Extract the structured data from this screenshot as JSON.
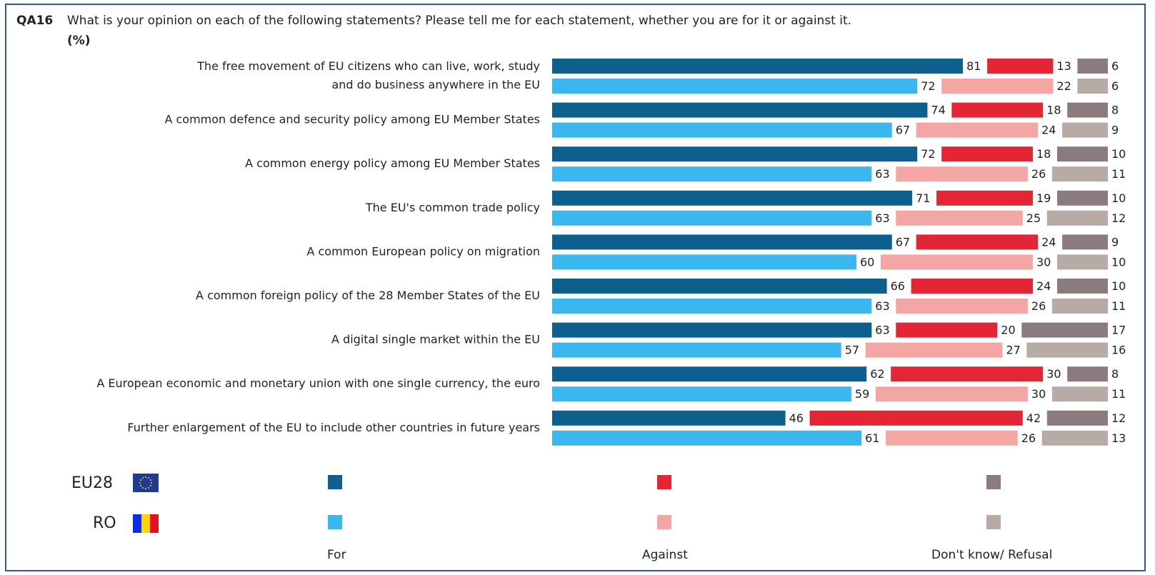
{
  "header": {
    "qid": "QA16",
    "question": "What is your opinion on each of the following statements? Please tell me for each statement, whether you are for it or against it.",
    "unit": "(%)"
  },
  "legend": {
    "rows": [
      {
        "label": "EU28",
        "flag": "eu-flag-icon"
      },
      {
        "label": "RO",
        "flag": "romania-flag-icon"
      }
    ],
    "categories": [
      "For",
      "Against",
      "Don't know/ Refusal"
    ]
  },
  "colors": {
    "eu28_for": "#0e5f8e",
    "eu28_against": "#e32536",
    "eu28_dk": "#8b7a7e",
    "ro_for": "#3ab7ef",
    "ro_against": "#f4a6a4",
    "ro_dk": "#b8aaa4"
  },
  "chart_data": {
    "type": "bar",
    "orientation": "horizontal-stacked",
    "categories": [
      [
        "The free movement of EU citizens who can live, work, study",
        "and do business anywhere in the EU"
      ],
      [
        "A common defence and security policy among EU Member States"
      ],
      [
        "A common energy policy among EU Member States"
      ],
      [
        "The EU's common trade policy"
      ],
      [
        "A common European policy on migration"
      ],
      [
        "A common foreign policy of the 28 Member States of the EU"
      ],
      [
        "A digital single market within the EU"
      ],
      [
        "A European economic and monetary union with one single currency, the euro"
      ],
      [
        "Further enlargement of the EU to include other countries in future years"
      ]
    ],
    "series": [
      {
        "name": "EU28",
        "for": [
          81,
          74,
          72,
          71,
          67,
          66,
          63,
          62,
          46
        ],
        "against": [
          13,
          18,
          18,
          19,
          24,
          24,
          20,
          30,
          42
        ],
        "dk": [
          6,
          8,
          10,
          10,
          9,
          10,
          17,
          8,
          12
        ]
      },
      {
        "name": "RO",
        "for": [
          72,
          67,
          63,
          63,
          60,
          63,
          57,
          59,
          61
        ],
        "against": [
          22,
          24,
          26,
          25,
          30,
          26,
          27,
          30,
          26
        ],
        "dk": [
          6,
          9,
          11,
          12,
          10,
          11,
          16,
          11,
          13
        ]
      }
    ],
    "xlim": [
      0,
      100
    ]
  }
}
